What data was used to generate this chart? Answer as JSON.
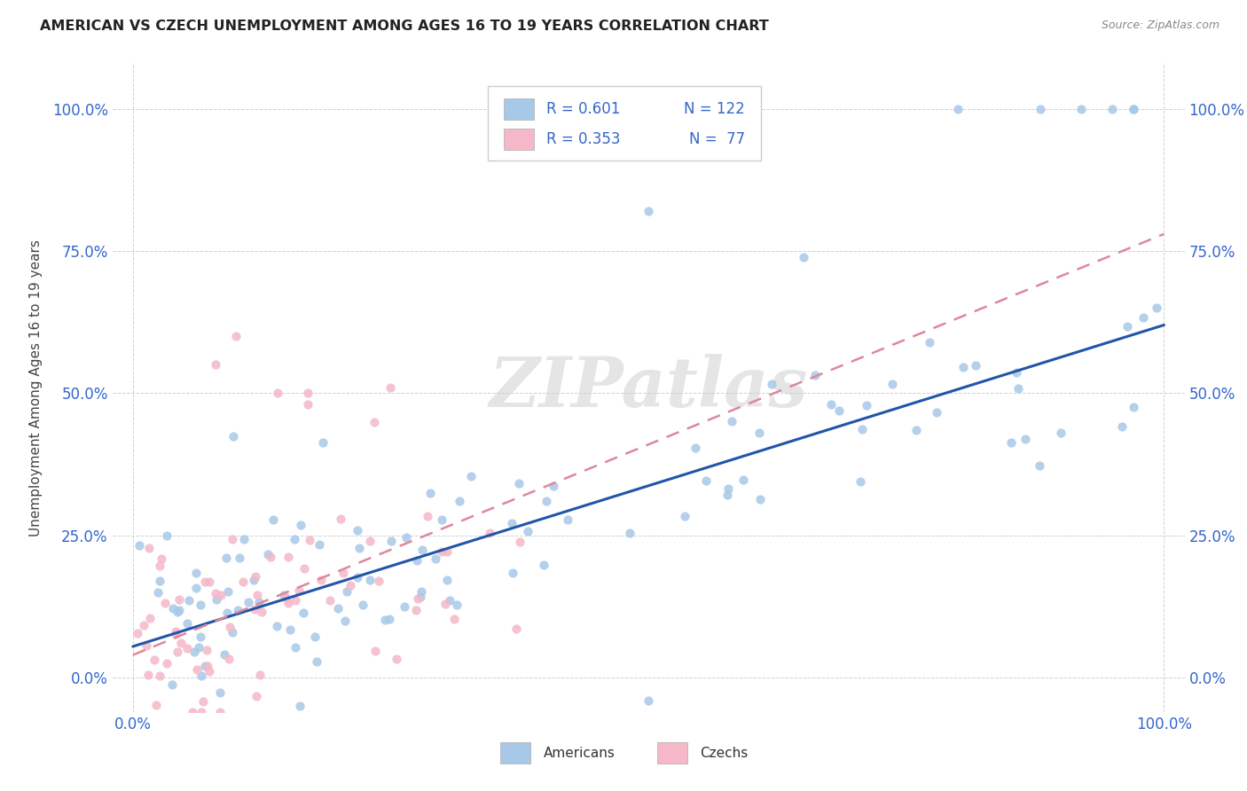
{
  "title": "AMERICAN VS CZECH UNEMPLOYMENT AMONG AGES 16 TO 19 YEARS CORRELATION CHART",
  "source": "Source: ZipAtlas.com",
  "ylabel": "Unemployment Among Ages 16 to 19 years",
  "xlim": [
    -0.02,
    1.02
  ],
  "ylim": [
    -0.06,
    1.08
  ],
  "ytick_labels": [
    "0.0%",
    "25.0%",
    "50.0%",
    "75.0%",
    "100.0%"
  ],
  "ytick_values": [
    0.0,
    0.25,
    0.5,
    0.75,
    1.0
  ],
  "xtick_labels": [
    "0.0%",
    "100.0%"
  ],
  "xtick_values": [
    0.0,
    1.0
  ],
  "legend_am_r": "R = 0.601",
  "legend_am_n": "N = 122",
  "legend_cz_r": "R = 0.353",
  "legend_cz_n": "N =  77",
  "american_color": "#a8c8e8",
  "czech_color": "#f4b8c8",
  "american_line_color": "#2255aa",
  "czech_line_color": "#dd8899",
  "background_color": "#ffffff",
  "grid_color": "#cccccc",
  "watermark": "ZIPatlas",
  "am_line_x0": 0.0,
  "am_line_x1": 1.0,
  "am_line_y0": 0.055,
  "am_line_y1": 0.62,
  "cz_line_x0": 0.0,
  "cz_line_x1": 1.0,
  "cz_line_y0": 0.04,
  "cz_line_y1": 0.78,
  "seed": 12345
}
